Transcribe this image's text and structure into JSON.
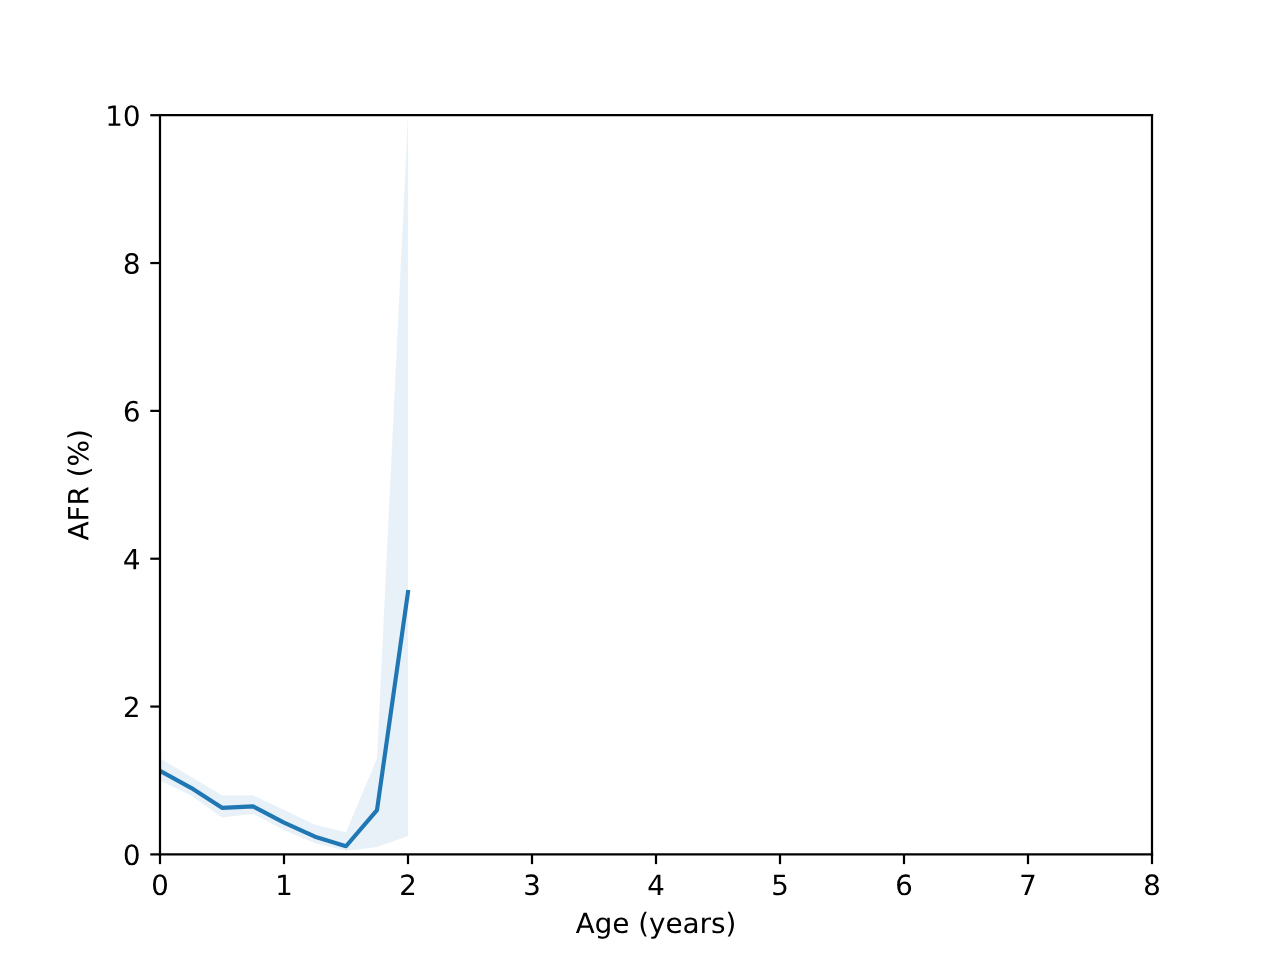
{
  "chart_data": {
    "type": "line",
    "xlabel": "Age (years)",
    "ylabel": "AFR (%)",
    "series": [
      {
        "color": "#1f77b4",
        "x": [
          0,
          0.25,
          0.5,
          0.75,
          1,
          1.25,
          1.5,
          1.75,
          2
        ],
        "values": [
          1.13,
          0.9,
          0.63,
          0.65,
          0.43,
          0.24,
          0.11,
          0.6,
          3.55
        ],
        "lower": [
          1.0,
          0.8,
          0.5,
          0.55,
          0.33,
          0.15,
          0.05,
          0.1,
          0.25
        ],
        "upper": [
          1.3,
          1.05,
          0.8,
          0.8,
          0.6,
          0.4,
          0.3,
          1.3,
          10
        ]
      }
    ],
    "xlim": [
      0,
      8
    ],
    "ylim": [
      0,
      10
    ],
    "xticks": [
      0,
      1,
      2,
      3,
      4,
      5,
      6,
      7,
      8
    ],
    "yticks": [
      0,
      2,
      4,
      6,
      8,
      10
    ],
    "grid": false,
    "legend": false
  }
}
